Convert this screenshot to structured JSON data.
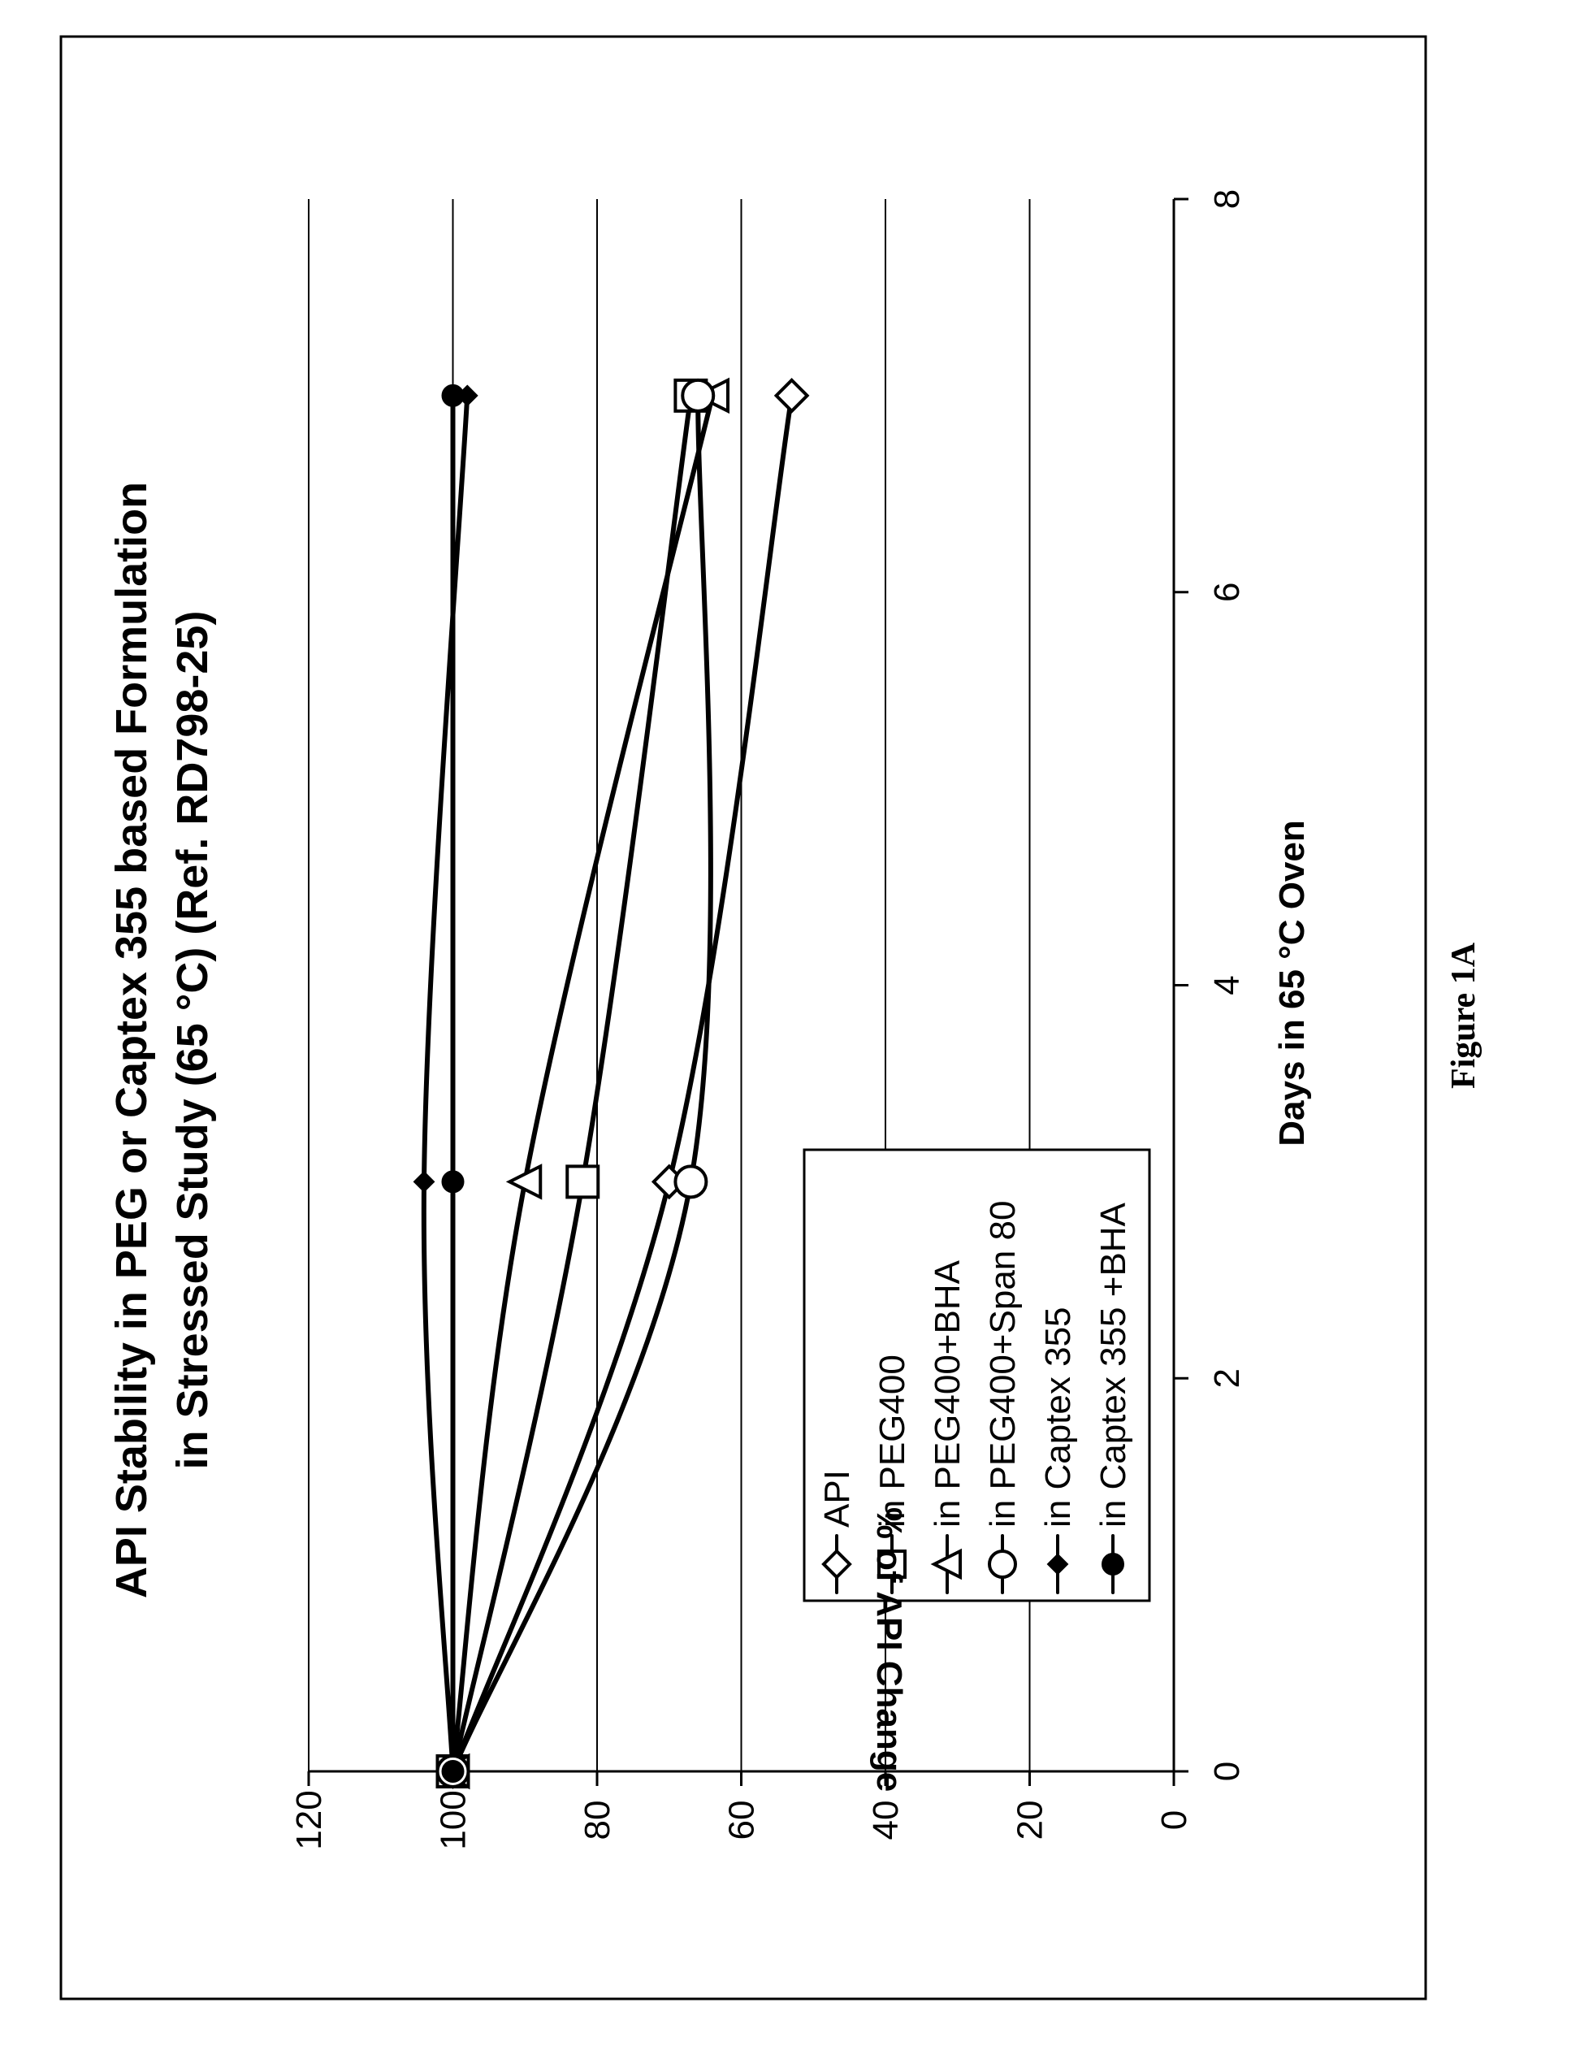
{
  "chart_data": {
    "type": "line",
    "title": [
      "API Stability in PEG or Captex 355 based Formulation",
      "in Stressed Study (65 °C) (Ref. RD798-25)"
    ],
    "xlabel": "Days in 65 °C Oven",
    "ylabel": "% of API Change",
    "xlim": [
      0,
      8
    ],
    "ylim": [
      0,
      120
    ],
    "xticks": [
      0,
      2,
      4,
      6,
      8
    ],
    "yticks": [
      0,
      20,
      40,
      60,
      80,
      100,
      120
    ],
    "grid": "horizontal",
    "legend_position": "inside-bottom-right",
    "x": [
      0,
      3,
      7
    ],
    "series": [
      {
        "name": "API",
        "values": [
          100,
          70,
          53
        ],
        "marker": "diamond-open"
      },
      {
        "name": "in PEG400",
        "values": [
          100,
          82,
          67
        ],
        "marker": "square-open"
      },
      {
        "name": "in PEG400+BHA",
        "values": [
          100,
          90,
          64
        ],
        "marker": "triangle-open"
      },
      {
        "name": "in PEG400+Span 80",
        "values": [
          100,
          67,
          66
        ],
        "marker": "circle-open"
      },
      {
        "name": "in Captex 355",
        "values": [
          100,
          104,
          98
        ],
        "marker": "diamond-filled"
      },
      {
        "name": "in Captex 355 +BHA",
        "values": [
          100,
          100,
          100
        ],
        "marker": "circle-filled"
      }
    ]
  },
  "figure_caption": "Figure 1A"
}
